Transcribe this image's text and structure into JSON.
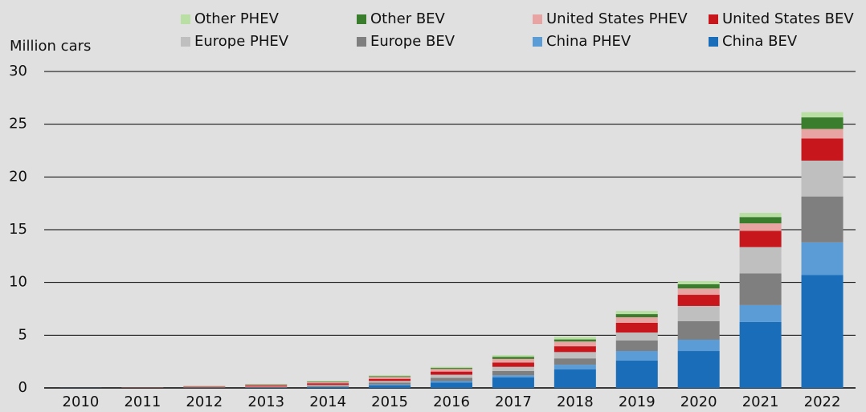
{
  "chart_data": {
    "type": "stacked-bar",
    "y_label": "Million cars",
    "categories": [
      "2010",
      "2011",
      "2012",
      "2013",
      "2014",
      "2015",
      "2016",
      "2017",
      "2018",
      "2019",
      "2020",
      "2021",
      "2022"
    ],
    "series": [
      {
        "name": "China BEV",
        "color": "#1a6eb9",
        "values": [
          0.01,
          0.01,
          0.01,
          0.03,
          0.08,
          0.25,
          0.5,
          1.0,
          1.75,
          2.6,
          3.5,
          6.25,
          10.7
        ]
      },
      {
        "name": "China PHEV",
        "color": "#5b9bd6",
        "values": [
          0,
          0,
          0.01,
          0.01,
          0.03,
          0.08,
          0.15,
          0.2,
          0.45,
          0.9,
          1.07,
          1.6,
          3.1
        ]
      },
      {
        "name": "Europe BEV",
        "color": "#7f7f7f",
        "values": [
          0,
          0.01,
          0.03,
          0.05,
          0.1,
          0.18,
          0.3,
          0.4,
          0.6,
          1.0,
          1.75,
          3.0,
          4.35
        ]
      },
      {
        "name": "Europe PHEV",
        "color": "#bfbfbf",
        "values": [
          0,
          0,
          0.01,
          0.04,
          0.08,
          0.15,
          0.3,
          0.4,
          0.6,
          0.75,
          1.45,
          2.5,
          3.4
        ]
      },
      {
        "name": "United States BEV",
        "color": "#c8161d",
        "values": [
          0,
          0.02,
          0.05,
          0.1,
          0.15,
          0.2,
          0.3,
          0.4,
          0.55,
          0.92,
          1.06,
          1.55,
          2.1
        ]
      },
      {
        "name": "United States PHEV",
        "color": "#e8a3a3",
        "values": [
          0,
          0.01,
          0.04,
          0.08,
          0.12,
          0.18,
          0.25,
          0.35,
          0.45,
          0.53,
          0.6,
          0.7,
          0.9
        ]
      },
      {
        "name": "Other BEV",
        "color": "#3a7d2c",
        "values": [
          0,
          0.01,
          0.02,
          0.03,
          0.05,
          0.08,
          0.1,
          0.2,
          0.2,
          0.3,
          0.4,
          0.6,
          1.1
        ]
      },
      {
        "name": "Other PHEV",
        "color": "#b9dfa5",
        "values": [
          0,
          0,
          0.01,
          0.03,
          0.05,
          0.08,
          0.1,
          0.15,
          0.25,
          0.3,
          0.3,
          0.4,
          0.5
        ]
      }
    ],
    "ylim": [
      0,
      30
    ],
    "yticks": [
      0,
      5,
      10,
      15,
      20,
      25,
      30
    ],
    "grid": true
  }
}
